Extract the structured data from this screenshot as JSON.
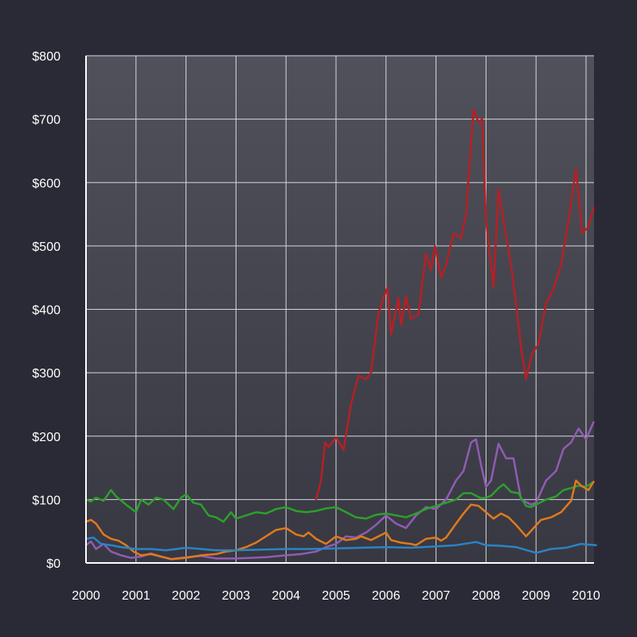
{
  "colors": {
    "page_background": "#2a2a36",
    "plot_background_top": "#51515b",
    "plot_background_bottom": "#383842",
    "grid": "#d6d6dc",
    "axis": "#ffffff",
    "tick_text": "#ffffff"
  },
  "chart_data": {
    "type": "line",
    "title": "",
    "xlabel": "",
    "ylabel": "",
    "xlim": [
      2000,
      2010.2
    ],
    "ylim": [
      0,
      800
    ],
    "x_ticks": [
      2000,
      2001,
      2002,
      2003,
      2004,
      2005,
      2006,
      2007,
      2008,
      2009,
      2010
    ],
    "x_tick_labels": [
      "2000",
      "2001",
      "2002",
      "2003",
      "2004",
      "2005",
      "2006",
      "2007",
      "2008",
      "2009",
      "2010"
    ],
    "y_ticks": [
      0,
      100,
      200,
      300,
      400,
      500,
      600,
      700,
      800
    ],
    "y_tick_labels": [
      "$0",
      "$100",
      "$200",
      "$300",
      "$400",
      "$500",
      "$600",
      "$700",
      "$800"
    ],
    "grid": true,
    "legend": "none",
    "series": [
      {
        "color": "#b52024",
        "points": [
          [
            2004.6,
            100
          ],
          [
            2004.7,
            130
          ],
          [
            2004.78,
            190
          ],
          [
            2004.85,
            183
          ],
          [
            2005.0,
            198
          ],
          [
            2005.15,
            178
          ],
          [
            2005.3,
            250
          ],
          [
            2005.45,
            295
          ],
          [
            2005.6,
            290
          ],
          [
            2005.7,
            300
          ],
          [
            2005.85,
            395
          ],
          [
            2005.95,
            418
          ],
          [
            2006.03,
            435
          ],
          [
            2006.1,
            360
          ],
          [
            2006.25,
            418
          ],
          [
            2006.3,
            375
          ],
          [
            2006.4,
            420
          ],
          [
            2006.5,
            385
          ],
          [
            2006.65,
            392
          ],
          [
            2006.8,
            488
          ],
          [
            2006.9,
            462
          ],
          [
            2006.98,
            500
          ],
          [
            2007.1,
            450
          ],
          [
            2007.2,
            470
          ],
          [
            2007.35,
            520
          ],
          [
            2007.5,
            512
          ],
          [
            2007.6,
            550
          ],
          [
            2007.75,
            715
          ],
          [
            2007.85,
            695
          ],
          [
            2007.92,
            700
          ],
          [
            2008.0,
            540
          ],
          [
            2008.15,
            435
          ],
          [
            2008.25,
            590
          ],
          [
            2008.35,
            540
          ],
          [
            2008.5,
            470
          ],
          [
            2008.6,
            410
          ],
          [
            2008.7,
            340
          ],
          [
            2008.8,
            290
          ],
          [
            2008.92,
            330
          ],
          [
            2009.05,
            345
          ],
          [
            2009.2,
            410
          ],
          [
            2009.35,
            432
          ],
          [
            2009.5,
            470
          ],
          [
            2009.65,
            540
          ],
          [
            2009.8,
            622
          ],
          [
            2009.92,
            520
          ],
          [
            2010.05,
            530
          ],
          [
            2010.15,
            560
          ]
        ]
      },
      {
        "color": "#8f5cb3",
        "points": [
          [
            2000.0,
            28
          ],
          [
            2000.1,
            34
          ],
          [
            2000.2,
            22
          ],
          [
            2000.35,
            30
          ],
          [
            2000.5,
            18
          ],
          [
            2000.7,
            12
          ],
          [
            2000.9,
            8
          ],
          [
            2001.1,
            10
          ],
          [
            2001.3,
            15
          ],
          [
            2001.5,
            10
          ],
          [
            2001.7,
            6
          ],
          [
            2002.0,
            9
          ],
          [
            2002.3,
            11
          ],
          [
            2002.6,
            7
          ],
          [
            2003.0,
            7
          ],
          [
            2003.3,
            8
          ],
          [
            2003.6,
            9
          ],
          [
            2004.0,
            12
          ],
          [
            2004.3,
            14
          ],
          [
            2004.6,
            18
          ],
          [
            2004.8,
            25
          ],
          [
            2005.0,
            30
          ],
          [
            2005.2,
            42
          ],
          [
            2005.4,
            40
          ],
          [
            2005.6,
            48
          ],
          [
            2005.8,
            60
          ],
          [
            2006.0,
            75
          ],
          [
            2006.2,
            62
          ],
          [
            2006.4,
            55
          ],
          [
            2006.6,
            75
          ],
          [
            2006.8,
            88
          ],
          [
            2007.0,
            85
          ],
          [
            2007.2,
            100
          ],
          [
            2007.4,
            130
          ],
          [
            2007.55,
            145
          ],
          [
            2007.7,
            190
          ],
          [
            2007.8,
            195
          ],
          [
            2007.9,
            155
          ],
          [
            2008.0,
            120
          ],
          [
            2008.1,
            130
          ],
          [
            2008.25,
            188
          ],
          [
            2008.4,
            165
          ],
          [
            2008.55,
            165
          ],
          [
            2008.7,
            100
          ],
          [
            2008.9,
            92
          ],
          [
            2009.0,
            95
          ],
          [
            2009.2,
            130
          ],
          [
            2009.4,
            145
          ],
          [
            2009.55,
            180
          ],
          [
            2009.7,
            190
          ],
          [
            2009.85,
            212
          ],
          [
            2010.0,
            195
          ],
          [
            2010.15,
            222
          ]
        ]
      },
      {
        "color": "#2ca02c",
        "points": [
          [
            2000.0,
            100
          ],
          [
            2000.1,
            97
          ],
          [
            2000.2,
            103
          ],
          [
            2000.35,
            98
          ],
          [
            2000.5,
            115
          ],
          [
            2000.6,
            105
          ],
          [
            2000.8,
            92
          ],
          [
            2001.0,
            80
          ],
          [
            2001.1,
            100
          ],
          [
            2001.25,
            92
          ],
          [
            2001.4,
            103
          ],
          [
            2001.55,
            100
          ],
          [
            2001.75,
            85
          ],
          [
            2001.9,
            103
          ],
          [
            2002.0,
            108
          ],
          [
            2002.15,
            95
          ],
          [
            2002.3,
            92
          ],
          [
            2002.45,
            75
          ],
          [
            2002.6,
            72
          ],
          [
            2002.75,
            65
          ],
          [
            2002.9,
            80
          ],
          [
            2003.0,
            70
          ],
          [
            2003.2,
            75
          ],
          [
            2003.4,
            80
          ],
          [
            2003.6,
            78
          ],
          [
            2003.8,
            85
          ],
          [
            2004.0,
            88
          ],
          [
            2004.2,
            82
          ],
          [
            2004.4,
            80
          ],
          [
            2004.6,
            82
          ],
          [
            2004.8,
            86
          ],
          [
            2005.0,
            88
          ],
          [
            2005.2,
            80
          ],
          [
            2005.4,
            72
          ],
          [
            2005.6,
            70
          ],
          [
            2005.8,
            76
          ],
          [
            2006.0,
            78
          ],
          [
            2006.2,
            75
          ],
          [
            2006.4,
            72
          ],
          [
            2006.6,
            78
          ],
          [
            2006.8,
            85
          ],
          [
            2007.0,
            90
          ],
          [
            2007.2,
            95
          ],
          [
            2007.4,
            100
          ],
          [
            2007.55,
            110
          ],
          [
            2007.7,
            110
          ],
          [
            2007.9,
            102
          ],
          [
            2008.0,
            103
          ],
          [
            2008.1,
            106
          ],
          [
            2008.25,
            118
          ],
          [
            2008.35,
            124
          ],
          [
            2008.5,
            112
          ],
          [
            2008.65,
            110
          ],
          [
            2008.8,
            90
          ],
          [
            2008.9,
            88
          ],
          [
            2009.0,
            92
          ],
          [
            2009.2,
            100
          ],
          [
            2009.4,
            105
          ],
          [
            2009.55,
            115
          ],
          [
            2009.7,
            118
          ],
          [
            2009.85,
            122
          ],
          [
            2010.0,
            120
          ],
          [
            2010.15,
            128
          ]
        ]
      },
      {
        "color": "#e07a1c",
        "points": [
          [
            2000.0,
            65
          ],
          [
            2000.1,
            68
          ],
          [
            2000.2,
            62
          ],
          [
            2000.35,
            45
          ],
          [
            2000.5,
            38
          ],
          [
            2000.65,
            35
          ],
          [
            2000.8,
            28
          ],
          [
            2000.95,
            18
          ],
          [
            2001.1,
            12
          ],
          [
            2001.3,
            14
          ],
          [
            2001.5,
            10
          ],
          [
            2001.7,
            6
          ],
          [
            2002.0,
            8
          ],
          [
            2002.3,
            12
          ],
          [
            2002.6,
            14
          ],
          [
            2002.8,
            18
          ],
          [
            2003.0,
            20
          ],
          [
            2003.2,
            25
          ],
          [
            2003.4,
            32
          ],
          [
            2003.6,
            42
          ],
          [
            2003.8,
            52
          ],
          [
            2004.0,
            55
          ],
          [
            2004.2,
            45
          ],
          [
            2004.35,
            42
          ],
          [
            2004.45,
            48
          ],
          [
            2004.6,
            38
          ],
          [
            2004.8,
            30
          ],
          [
            2005.0,
            42
          ],
          [
            2005.2,
            36
          ],
          [
            2005.4,
            38
          ],
          [
            2005.5,
            42
          ],
          [
            2005.7,
            36
          ],
          [
            2005.9,
            44
          ],
          [
            2006.0,
            48
          ],
          [
            2006.1,
            36
          ],
          [
            2006.3,
            32
          ],
          [
            2006.5,
            30
          ],
          [
            2006.6,
            28
          ],
          [
            2006.8,
            38
          ],
          [
            2007.0,
            40
          ],
          [
            2007.1,
            35
          ],
          [
            2007.2,
            40
          ],
          [
            2007.4,
            62
          ],
          [
            2007.55,
            78
          ],
          [
            2007.7,
            92
          ],
          [
            2007.85,
            90
          ],
          [
            2008.0,
            80
          ],
          [
            2008.15,
            70
          ],
          [
            2008.3,
            78
          ],
          [
            2008.45,
            72
          ],
          [
            2008.6,
            60
          ],
          [
            2008.8,
            42
          ],
          [
            2008.95,
            55
          ],
          [
            2009.1,
            68
          ],
          [
            2009.3,
            72
          ],
          [
            2009.5,
            80
          ],
          [
            2009.7,
            98
          ],
          [
            2009.8,
            130
          ],
          [
            2009.9,
            122
          ],
          [
            2010.05,
            115
          ],
          [
            2010.15,
            128
          ]
        ]
      },
      {
        "color": "#2a84c4",
        "points": [
          [
            2000.0,
            38
          ],
          [
            2000.15,
            40
          ],
          [
            2000.3,
            30
          ],
          [
            2000.5,
            28
          ],
          [
            2000.7,
            25
          ],
          [
            2001.0,
            22
          ],
          [
            2001.3,
            22
          ],
          [
            2001.6,
            20
          ],
          [
            2002.0,
            24
          ],
          [
            2002.3,
            22
          ],
          [
            2002.6,
            20
          ],
          [
            2003.0,
            20
          ],
          [
            2003.5,
            21
          ],
          [
            2004.0,
            22
          ],
          [
            2004.5,
            22
          ],
          [
            2005.0,
            23
          ],
          [
            2005.5,
            24
          ],
          [
            2006.0,
            25
          ],
          [
            2006.5,
            24
          ],
          [
            2007.0,
            26
          ],
          [
            2007.4,
            28
          ],
          [
            2007.8,
            33
          ],
          [
            2008.0,
            28
          ],
          [
            2008.3,
            27
          ],
          [
            2008.6,
            25
          ],
          [
            2009.0,
            16
          ],
          [
            2009.3,
            22
          ],
          [
            2009.6,
            24
          ],
          [
            2009.9,
            30
          ],
          [
            2010.2,
            28
          ]
        ]
      }
    ]
  }
}
